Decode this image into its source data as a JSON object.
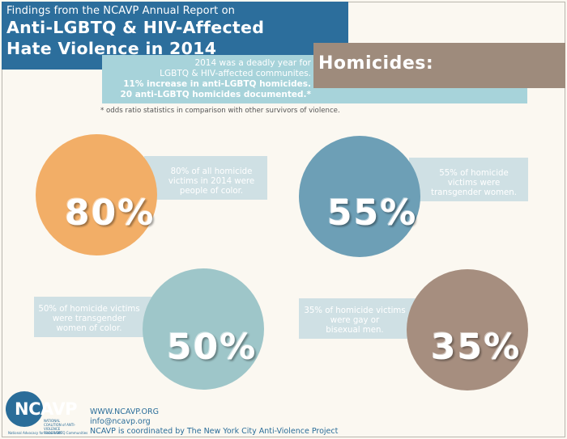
{
  "header": {
    "kicker": "Findings from the NCAVP Annual Report on",
    "title_line1": "Anti-LGBTQ & HIV-Affected",
    "title_line2": "Hate Violence in 2014"
  },
  "section_banner": "Homicides:",
  "intro": {
    "line1": "2014 was a deadly year for",
    "line2": "LGBTQ & HIV-affected communites.",
    "line3": "11% increase in anti-LGBTQ homicides.",
    "line4": "20 anti-LGBTQ homicides documented.*"
  },
  "footnote": "* odds ratio statistics in comparison with other survivors of violence.",
  "stats": [
    {
      "percent": "80%",
      "line1": "80% of all homicide",
      "line2": "victims in 2014 were",
      "line3": "people of color.",
      "color": "#f2ae67"
    },
    {
      "percent": "55%",
      "line1": "55% of homicide",
      "line2": "victims were",
      "line3": "transgender women.",
      "color": "#6d9fb6"
    },
    {
      "percent": "50%",
      "line1": "50% of homicide victims",
      "line2": "were transgender",
      "line3": "women of color.",
      "color": "#9ec6c9"
    },
    {
      "percent": "35%",
      "line1": "35% of homicide victims",
      "line2": "were gay or",
      "line3": "bisexual men.",
      "color": "#a68e7f"
    }
  ],
  "footer": {
    "logo_word": "NCAVP",
    "logo_sub": "NATIONAL COALITION of ANTI-VIOLENCE PROGRAMS",
    "logo_tag": "National Advocacy for Local LGBTQ Communities",
    "website": "WWW.NCAVP.ORG",
    "email": "info@ncavp.org",
    "coordinated": "NCAVP is coordinated by The New York City Anti-Violence Project"
  }
}
